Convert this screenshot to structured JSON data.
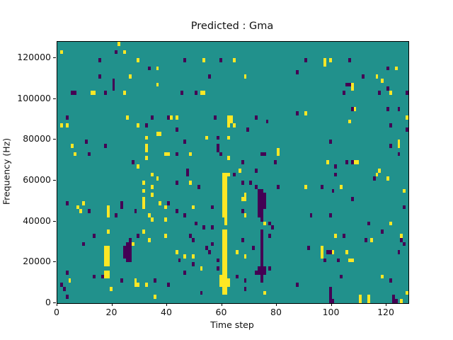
{
  "title": "Predicted : Gma",
  "colors": {
    "figure_background": "#ffffff",
    "heatmap_mid": "#21918c",
    "heatmap_high": "#fde725",
    "heatmap_low": "#440154",
    "spine": "#000000",
    "text": "#111111"
  },
  "chart_data": {
    "type": "heatmap",
    "title": "Predicted : Gma",
    "xlabel": "Time step",
    "ylabel": "Frequency (Hz)",
    "x_ticks": [
      0,
      20,
      40,
      60,
      80,
      100,
      120
    ],
    "y_ticks": [
      0,
      20000,
      40000,
      60000,
      80000,
      100000,
      120000
    ],
    "xlim": [
      0,
      128
    ],
    "ylim": [
      0,
      128000
    ],
    "grid": {
      "cols": 128,
      "rows": 64,
      "hz_per_row": 2000,
      "steps_per_col": 1
    },
    "legend": "none",
    "value_legend": {
      "high_color_value": "high/1",
      "mid_color_value": "mid/0.5",
      "low_color_value": "low/0"
    },
    "cells_high": [
      [
        1,
        61
      ],
      [
        22,
        63
      ],
      [
        24,
        61
      ],
      [
        29,
        59
      ],
      [
        36,
        57
      ],
      [
        26,
        55
      ],
      [
        36,
        53
      ],
      [
        12,
        51
      ],
      [
        13,
        51
      ],
      [
        24,
        51
      ],
      [
        25,
        45
      ],
      [
        41,
        45
      ],
      [
        1,
        43
      ],
      [
        3,
        43
      ],
      [
        29,
        43
      ],
      [
        36,
        41
      ],
      [
        37,
        41
      ],
      [
        32,
        40
      ],
      [
        5,
        38
      ],
      [
        32,
        38
      ],
      [
        32,
        37
      ],
      [
        6,
        36
      ],
      [
        39,
        36
      ],
      [
        40,
        36
      ],
      [
        32,
        35
      ],
      [
        29,
        33
      ],
      [
        53,
        59
      ],
      [
        64,
        59
      ],
      [
        68,
        55
      ],
      [
        52,
        51
      ],
      [
        53,
        51
      ],
      [
        43,
        45
      ],
      [
        62,
        45
      ],
      [
        63,
        45
      ],
      [
        62,
        44
      ],
      [
        63,
        44
      ],
      [
        62,
        43
      ],
      [
        64,
        43
      ],
      [
        54,
        40
      ],
      [
        62,
        40
      ],
      [
        80,
        37
      ],
      [
        48,
        36
      ],
      [
        80,
        36
      ],
      [
        62,
        35
      ],
      [
        66,
        32
      ],
      [
        97,
        59
      ],
      [
        99,
        59
      ],
      [
        97,
        58
      ],
      [
        123,
        57
      ],
      [
        116,
        55
      ],
      [
        118,
        54
      ],
      [
        107,
        53
      ],
      [
        107,
        52
      ],
      [
        121,
        51
      ],
      [
        108,
        47
      ],
      [
        90,
        46
      ],
      [
        127,
        45
      ],
      [
        106,
        44
      ],
      [
        124,
        39
      ],
      [
        124,
        38
      ],
      [
        98,
        34
      ],
      [
        108,
        34
      ],
      [
        109,
        34
      ],
      [
        117,
        32
      ],
      [
        34,
        31
      ],
      [
        36,
        30
      ],
      [
        31,
        29
      ],
      [
        34,
        28
      ],
      [
        31,
        27
      ],
      [
        34,
        26
      ],
      [
        31,
        25
      ],
      [
        9,
        24
      ],
      [
        31,
        24
      ],
      [
        37,
        24
      ],
      [
        7,
        23
      ],
      [
        18,
        23
      ],
      [
        31,
        23
      ],
      [
        39,
        23
      ],
      [
        8,
        22
      ],
      [
        18,
        22
      ],
      [
        18,
        21
      ],
      [
        33,
        21
      ],
      [
        34,
        20
      ],
      [
        39,
        20
      ],
      [
        18,
        17
      ],
      [
        31,
        17
      ],
      [
        39,
        16
      ],
      [
        33,
        15
      ],
      [
        27,
        14
      ],
      [
        17,
        13
      ],
      [
        18,
        13
      ],
      [
        17,
        12
      ],
      [
        18,
        12
      ],
      [
        17,
        11
      ],
      [
        18,
        11
      ],
      [
        17,
        10
      ],
      [
        18,
        10
      ],
      [
        17,
        9
      ],
      [
        18,
        9
      ],
      [
        17,
        7
      ],
      [
        18,
        7
      ],
      [
        17,
        6
      ],
      [
        18,
        6
      ],
      [
        4,
        5
      ],
      [
        28,
        5
      ],
      [
        28,
        4
      ],
      [
        29,
        4
      ],
      [
        32,
        4
      ],
      [
        19,
        3
      ],
      [
        35,
        1
      ],
      [
        60,
        31
      ],
      [
        61,
        31
      ],
      [
        62,
        31
      ],
      [
        60,
        30
      ],
      [
        61,
        30
      ],
      [
        60,
        29
      ],
      [
        61,
        29
      ],
      [
        48,
        29
      ],
      [
        60,
        28
      ],
      [
        61,
        28
      ],
      [
        60,
        27
      ],
      [
        61,
        27
      ],
      [
        60,
        26
      ],
      [
        61,
        26
      ],
      [
        68,
        26
      ],
      [
        60,
        25
      ],
      [
        61,
        25
      ],
      [
        67,
        25
      ],
      [
        68,
        25
      ],
      [
        60,
        24
      ],
      [
        61,
        24
      ],
      [
        60,
        23
      ],
      [
        61,
        23
      ],
      [
        49,
        23
      ],
      [
        60,
        22
      ],
      [
        61,
        22
      ],
      [
        60,
        21
      ],
      [
        61,
        21
      ],
      [
        68,
        21
      ],
      [
        61,
        20
      ],
      [
        61,
        19
      ],
      [
        75,
        19
      ],
      [
        60,
        17
      ],
      [
        61,
        17
      ],
      [
        60,
        16
      ],
      [
        61,
        16
      ],
      [
        60,
        15
      ],
      [
        61,
        15
      ],
      [
        60,
        14
      ],
      [
        61,
        14
      ],
      [
        60,
        13
      ],
      [
        61,
        13
      ],
      [
        60,
        12
      ],
      [
        61,
        12
      ],
      [
        43,
        12
      ],
      [
        65,
        12
      ],
      [
        60,
        11
      ],
      [
        61,
        11
      ],
      [
        46,
        11
      ],
      [
        49,
        11
      ],
      [
        68,
        11
      ],
      [
        60,
        10
      ],
      [
        61,
        10
      ],
      [
        60,
        9
      ],
      [
        61,
        9
      ],
      [
        60,
        8
      ],
      [
        61,
        8
      ],
      [
        52,
        8
      ],
      [
        60,
        7
      ],
      [
        61,
        7
      ],
      [
        59,
        6
      ],
      [
        60,
        6
      ],
      [
        61,
        6
      ],
      [
        59,
        5
      ],
      [
        60,
        5
      ],
      [
        61,
        5
      ],
      [
        62,
        5
      ],
      [
        59,
        4
      ],
      [
        60,
        4
      ],
      [
        61,
        4
      ],
      [
        62,
        4
      ],
      [
        60,
        3
      ],
      [
        61,
        3
      ],
      [
        60,
        2
      ],
      [
        61,
        2
      ],
      [
        75,
        2
      ],
      [
        116,
        31
      ],
      [
        120,
        30
      ],
      [
        90,
        28
      ],
      [
        103,
        28
      ],
      [
        126,
        27
      ],
      [
        121,
        19
      ],
      [
        101,
        16
      ],
      [
        125,
        16
      ],
      [
        114,
        15
      ],
      [
        96,
        13
      ],
      [
        96,
        12
      ],
      [
        100,
        12
      ],
      [
        105,
        12
      ],
      [
        96,
        11
      ],
      [
        106,
        10
      ],
      [
        107,
        10
      ],
      [
        118,
        6
      ],
      [
        127,
        2
      ],
      [
        110,
        1
      ],
      [
        113,
        1
      ],
      [
        110,
        0
      ],
      [
        113,
        0
      ],
      [
        125,
        0
      ]
    ],
    "cells_low": [
      [
        21,
        61
      ],
      [
        15,
        59
      ],
      [
        33,
        57
      ],
      [
        15,
        55
      ],
      [
        20,
        54
      ],
      [
        20,
        53
      ],
      [
        20,
        52
      ],
      [
        5,
        51
      ],
      [
        6,
        51
      ],
      [
        17,
        51
      ],
      [
        3,
        45
      ],
      [
        34,
        45
      ],
      [
        40,
        45
      ],
      [
        32,
        43
      ],
      [
        10,
        39
      ],
      [
        17,
        38
      ],
      [
        11,
        36
      ],
      [
        27,
        34
      ],
      [
        46,
        59
      ],
      [
        59,
        59
      ],
      [
        55,
        55
      ],
      [
        45,
        51
      ],
      [
        50,
        51
      ],
      [
        57,
        45
      ],
      [
        72,
        45
      ],
      [
        76,
        44
      ],
      [
        43,
        42
      ],
      [
        69,
        42
      ],
      [
        58,
        40
      ],
      [
        46,
        39
      ],
      [
        58,
        38
      ],
      [
        58,
        37
      ],
      [
        43,
        36
      ],
      [
        59,
        36
      ],
      [
        74,
        36
      ],
      [
        75,
        36
      ],
      [
        67,
        34
      ],
      [
        79,
        34
      ],
      [
        47,
        32
      ],
      [
        72,
        32
      ],
      [
        90,
        59
      ],
      [
        106,
        59
      ],
      [
        120,
        57
      ],
      [
        87,
        56
      ],
      [
        111,
        55
      ],
      [
        105,
        53
      ],
      [
        106,
        53
      ],
      [
        120,
        52
      ],
      [
        104,
        51
      ],
      [
        117,
        51
      ],
      [
        127,
        51
      ],
      [
        107,
        47
      ],
      [
        120,
        47
      ],
      [
        124,
        47
      ],
      [
        87,
        46
      ],
      [
        121,
        43
      ],
      [
        127,
        42
      ],
      [
        99,
        39
      ],
      [
        121,
        38
      ],
      [
        124,
        36
      ],
      [
        105,
        34
      ],
      [
        107,
        34
      ],
      [
        101,
        33
      ],
      [
        3,
        24
      ],
      [
        23,
        24
      ],
      [
        40,
        24
      ],
      [
        11,
        22
      ],
      [
        28,
        22
      ],
      [
        23,
        23
      ],
      [
        21,
        21
      ],
      [
        13,
        16
      ],
      [
        29,
        16
      ],
      [
        26,
        15
      ],
      [
        9,
        14
      ],
      [
        25,
        14
      ],
      [
        26,
        14
      ],
      [
        24,
        13
      ],
      [
        25,
        13
      ],
      [
        26,
        13
      ],
      [
        24,
        12
      ],
      [
        25,
        12
      ],
      [
        26,
        12
      ],
      [
        24,
        11
      ],
      [
        25,
        11
      ],
      [
        26,
        11
      ],
      [
        25,
        10
      ],
      [
        26,
        10
      ],
      [
        3,
        7
      ],
      [
        13,
        6
      ],
      [
        16,
        6
      ],
      [
        23,
        5
      ],
      [
        35,
        5
      ],
      [
        40,
        4
      ],
      [
        1,
        4
      ],
      [
        2,
        3
      ],
      [
        3,
        1
      ],
      [
        47,
        31
      ],
      [
        64,
        31
      ],
      [
        43,
        29
      ],
      [
        67,
        29
      ],
      [
        70,
        29
      ],
      [
        51,
        28
      ],
      [
        72,
        28
      ],
      [
        80,
        28
      ],
      [
        73,
        27
      ],
      [
        74,
        27
      ],
      [
        73,
        26
      ],
      [
        74,
        26
      ],
      [
        75,
        26
      ],
      [
        73,
        25
      ],
      [
        74,
        25
      ],
      [
        75,
        25
      ],
      [
        73,
        24
      ],
      [
        74,
        24
      ],
      [
        75,
        24
      ],
      [
        56,
        23
      ],
      [
        73,
        23
      ],
      [
        74,
        23
      ],
      [
        75,
        23
      ],
      [
        43,
        22
      ],
      [
        67,
        22
      ],
      [
        73,
        22
      ],
      [
        74,
        22
      ],
      [
        46,
        21
      ],
      [
        73,
        21
      ],
      [
        74,
        21
      ],
      [
        74,
        20
      ],
      [
        50,
        19
      ],
      [
        77,
        19
      ],
      [
        53,
        18
      ],
      [
        56,
        18
      ],
      [
        78,
        18
      ],
      [
        74,
        17
      ],
      [
        48,
        16
      ],
      [
        74,
        16
      ],
      [
        77,
        16
      ],
      [
        49,
        15
      ],
      [
        67,
        15
      ],
      [
        74,
        15
      ],
      [
        56,
        14
      ],
      [
        74,
        14
      ],
      [
        54,
        13
      ],
      [
        71,
        13
      ],
      [
        74,
        13
      ],
      [
        55,
        12
      ],
      [
        74,
        12
      ],
      [
        74,
        11
      ],
      [
        44,
        10
      ],
      [
        58,
        10
      ],
      [
        74,
        10
      ],
      [
        49,
        9
      ],
      [
        74,
        9
      ],
      [
        58,
        8
      ],
      [
        73,
        8
      ],
      [
        74,
        8
      ],
      [
        75,
        8
      ],
      [
        77,
        8
      ],
      [
        46,
        7
      ],
      [
        72,
        7
      ],
      [
        73,
        7
      ],
      [
        74,
        7
      ],
      [
        75,
        7
      ],
      [
        65,
        6
      ],
      [
        74,
        6
      ],
      [
        68,
        5
      ],
      [
        74,
        5
      ],
      [
        68,
        3
      ],
      [
        52,
        2
      ],
      [
        101,
        31
      ],
      [
        115,
        30
      ],
      [
        96,
        28
      ],
      [
        100,
        27
      ],
      [
        107,
        25
      ],
      [
        126,
        23
      ],
      [
        92,
        21
      ],
      [
        99,
        21
      ],
      [
        113,
        19
      ],
      [
        118,
        17
      ],
      [
        104,
        16
      ],
      [
        112,
        15
      ],
      [
        125,
        15
      ],
      [
        126,
        14
      ],
      [
        91,
        13
      ],
      [
        98,
        12
      ],
      [
        99,
        12
      ],
      [
        124,
        12
      ],
      [
        97,
        10
      ],
      [
        102,
        10
      ],
      [
        103,
        6
      ],
      [
        121,
        5
      ],
      [
        87,
        4
      ],
      [
        99,
        3
      ],
      [
        99,
        2
      ],
      [
        99,
        1
      ],
      [
        122,
        1
      ],
      [
        99,
        0
      ],
      [
        100,
        0
      ],
      [
        122,
        0
      ],
      [
        123,
        0
      ]
    ]
  }
}
